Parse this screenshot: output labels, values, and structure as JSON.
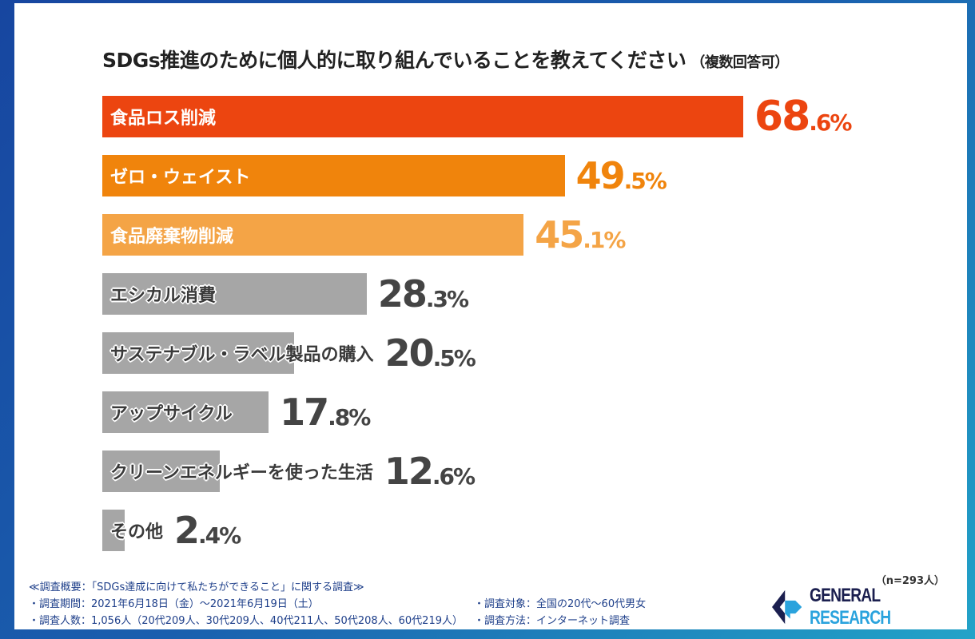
{
  "chart_data": {
    "type": "bar",
    "orientation": "horizontal",
    "title": "SDGs推進のために個人的に取り組んでいることを教えてください",
    "subtitle": "（複数回答可）",
    "categories": [
      "食品ロス削減",
      "ゼロ・ウェイスト",
      "食品廃棄物削減",
      "エシカル消費",
      "サステナブル・ラベル製品の購入",
      "アップサイクル",
      "クリーンエネルギーを使った生活",
      "その他"
    ],
    "values": [
      68.6,
      49.5,
      45.1,
      28.3,
      20.5,
      17.8,
      12.6,
      2.4
    ],
    "unit": "%",
    "colors": [
      "#ec4510",
      "#f0840c",
      "#f4a446",
      "#a6a6a6",
      "#a6a6a6",
      "#a6a6a6",
      "#a6a6a6",
      "#a6a6a6"
    ],
    "value_colors": [
      "#ec4510",
      "#f0840c",
      "#f4a446",
      "#444444",
      "#444444",
      "#444444",
      "#444444",
      "#444444"
    ],
    "grid": false
  },
  "sample": "（n=293人）",
  "notes": {
    "heading": "≪調査概要：「SDGs達成に向けて私たちができること」に関する調査≫",
    "period": "・調査期間：2021年6月18日（金）～2021年6月19日（土）",
    "count": "・調査人数：1,056人（20代209人、30代209人、40代211人、50代208人、60代219人）",
    "target": "・調査対象：全国の20代～60代男女",
    "method": "・調査方法：インターネット調査"
  },
  "logo": {
    "part1": "GENERAL",
    "part2": "RESEARCH",
    "colors": [
      "#1b1f4f",
      "#2aa3dd"
    ]
  }
}
